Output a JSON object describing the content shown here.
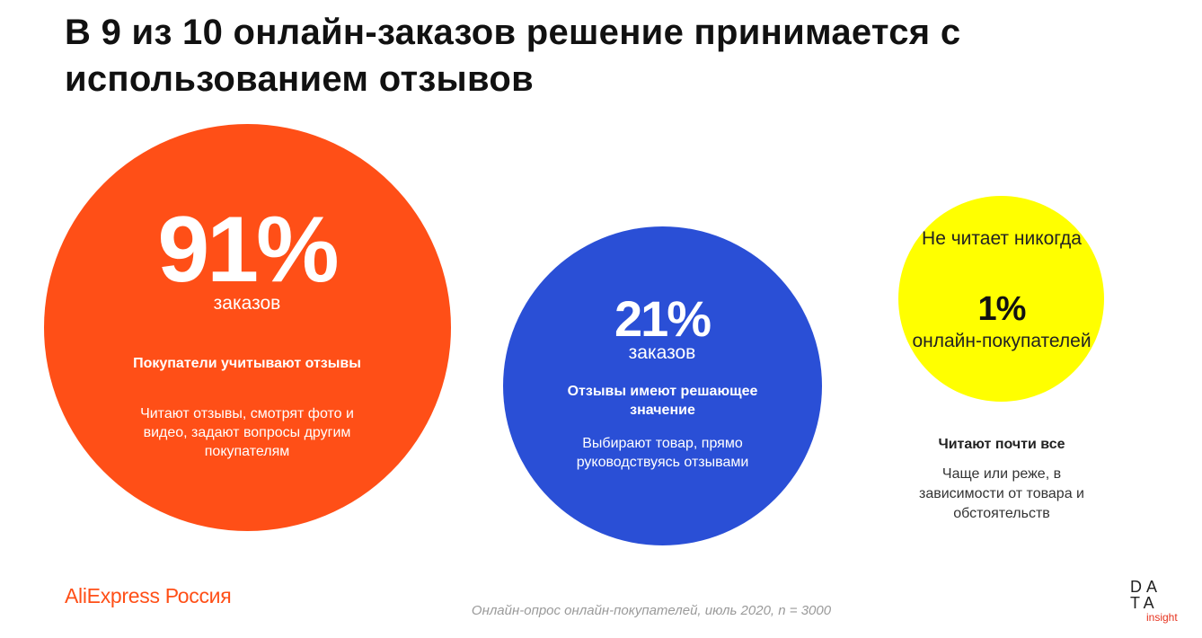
{
  "title": "В 9 из 10 онлайн-заказов решение принимается с использованием отзывов",
  "circles": {
    "orange": {
      "color": "#ff4f17",
      "percent": "91%",
      "unit": "заказов",
      "heading": "Покупатели учитывают отзывы",
      "description": "Читают отзывы, смотрят фото и видео, задают вопросы другим покупателям"
    },
    "blue": {
      "color": "#2a4fd6",
      "percent": "21%",
      "unit": "заказов",
      "heading": "Отзывы имеют решающее значение",
      "description": "Выбирают товар, прямо руководствуясь отзывами"
    },
    "yellow": {
      "color": "#ffff00",
      "top_text": "Не читает никогда",
      "percent": "1%",
      "bottom_text": "онлайн-покупателей",
      "heading": "Читают почти все",
      "description": "Чаще или реже, в зависимости от товара и обстоятельств"
    }
  },
  "footer": {
    "logo_text": "AliExpress Россия",
    "source": "Онлайн-опрос онлайн-покупателей, июль 2020, n = 3000",
    "data_insight": {
      "line1": "DA",
      "line2": "TA",
      "sub": "insight"
    }
  }
}
